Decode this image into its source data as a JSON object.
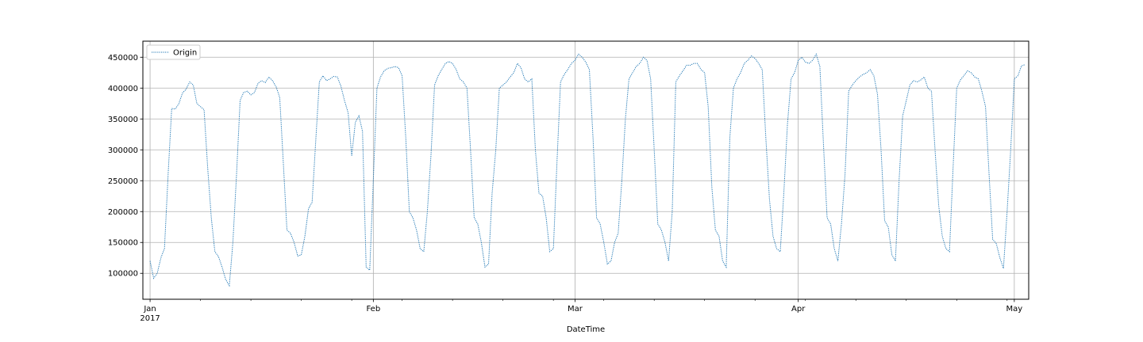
{
  "chart_data": {
    "type": "line",
    "title": "",
    "xlabel": "DateTime",
    "ylabel": "",
    "x_range": [
      "2016-12-31",
      "2017-05-03"
    ],
    "ylim": [
      58000,
      476000
    ],
    "grid": true,
    "legend": {
      "position": "top-left",
      "entries": [
        "Origin"
      ]
    },
    "x_ticks": [
      {
        "date": "2017-01-01",
        "label": "Jan",
        "sublabel": "2017"
      },
      {
        "date": "2017-02-01",
        "label": "Feb",
        "sublabel": ""
      },
      {
        "date": "2017-03-01",
        "label": "Mar",
        "sublabel": ""
      },
      {
        "date": "2017-04-01",
        "label": "Apr",
        "sublabel": ""
      },
      {
        "date": "2017-05-01",
        "label": "May",
        "sublabel": ""
      }
    ],
    "y_ticks": [
      100000,
      150000,
      200000,
      250000,
      300000,
      350000,
      400000,
      450000
    ],
    "y_tick_labels": [
      "100000",
      "150000",
      "200000",
      "250000",
      "300000",
      "350000",
      "400000",
      "450000"
    ],
    "series": [
      {
        "name": "Origin",
        "color": "#1f77b4",
        "line_style": "dotted",
        "points": [
          [
            "2017-01-01",
            120000
          ],
          [
            "2017-01-01T12",
            92000
          ],
          [
            "2017-01-02",
            100000
          ],
          [
            "2017-01-02T12",
            125000
          ],
          [
            "2017-01-03",
            140000
          ],
          [
            "2017-01-03T12",
            260000
          ],
          [
            "2017-01-04",
            367000
          ],
          [
            "2017-01-04T12",
            366000
          ],
          [
            "2017-01-05",
            375000
          ],
          [
            "2017-01-05T12",
            392000
          ],
          [
            "2017-01-06",
            398000
          ],
          [
            "2017-01-06T12",
            410000
          ],
          [
            "2017-01-07",
            405000
          ],
          [
            "2017-01-07T12",
            375000
          ],
          [
            "2017-01-08",
            370000
          ],
          [
            "2017-01-08T12",
            365000
          ],
          [
            "2017-01-09",
            270000
          ],
          [
            "2017-01-09T12",
            190000
          ],
          [
            "2017-01-10",
            135000
          ],
          [
            "2017-01-10T12",
            127000
          ],
          [
            "2017-01-11",
            110000
          ],
          [
            "2017-01-11T12",
            90000
          ],
          [
            "2017-01-12",
            80000
          ],
          [
            "2017-01-12T12",
            150000
          ],
          [
            "2017-01-13",
            260000
          ],
          [
            "2017-01-13T12",
            380000
          ],
          [
            "2017-01-14",
            393000
          ],
          [
            "2017-01-14T12",
            395000
          ],
          [
            "2017-01-15",
            389000
          ],
          [
            "2017-01-15T12",
            393000
          ],
          [
            "2017-01-16",
            408000
          ],
          [
            "2017-01-16T12",
            412000
          ],
          [
            "2017-01-17",
            409000
          ],
          [
            "2017-01-17T12",
            418000
          ],
          [
            "2017-01-18",
            412000
          ],
          [
            "2017-01-18T12",
            402000
          ],
          [
            "2017-01-19",
            385000
          ],
          [
            "2017-01-19T12",
            280000
          ],
          [
            "2017-01-20",
            170000
          ],
          [
            "2017-01-20T12",
            165000
          ],
          [
            "2017-01-21",
            150000
          ],
          [
            "2017-01-21T12",
            128000
          ],
          [
            "2017-01-22",
            130000
          ],
          [
            "2017-01-22T12",
            160000
          ],
          [
            "2017-01-23",
            205000
          ],
          [
            "2017-01-23T12",
            215000
          ],
          [
            "2017-01-24",
            315000
          ],
          [
            "2017-01-24T12",
            410000
          ],
          [
            "2017-01-25",
            420000
          ],
          [
            "2017-01-25T12",
            412000
          ],
          [
            "2017-01-26",
            415000
          ],
          [
            "2017-01-26T12",
            419000
          ],
          [
            "2017-01-27",
            418000
          ],
          [
            "2017-01-27T12",
            403000
          ],
          [
            "2017-01-28",
            380000
          ],
          [
            "2017-01-28T12",
            360000
          ],
          [
            "2017-01-29",
            290000
          ],
          [
            "2017-01-29T12",
            345000
          ],
          [
            "2017-01-30",
            355000
          ],
          [
            "2017-01-30T12",
            330000
          ],
          [
            "2017-01-31",
            110000
          ],
          [
            "2017-01-31T12",
            105000
          ],
          [
            "2017-02-01",
            250000
          ],
          [
            "2017-02-01T12",
            400000
          ],
          [
            "2017-02-02",
            418000
          ],
          [
            "2017-02-02T12",
            428000
          ],
          [
            "2017-02-03",
            432000
          ],
          [
            "2017-02-03T12",
            433000
          ],
          [
            "2017-02-04",
            435000
          ],
          [
            "2017-02-04T12",
            433000
          ],
          [
            "2017-02-05",
            420000
          ],
          [
            "2017-02-05T12",
            320000
          ],
          [
            "2017-02-06",
            200000
          ],
          [
            "2017-02-06T12",
            190000
          ],
          [
            "2017-02-07",
            170000
          ],
          [
            "2017-02-07T12",
            140000
          ],
          [
            "2017-02-08",
            135000
          ],
          [
            "2017-02-08T12",
            200000
          ],
          [
            "2017-02-09",
            290000
          ],
          [
            "2017-02-09T12",
            405000
          ],
          [
            "2017-02-10",
            420000
          ],
          [
            "2017-02-10T12",
            430000
          ],
          [
            "2017-02-11",
            440000
          ],
          [
            "2017-02-11T12",
            443000
          ],
          [
            "2017-02-12",
            440000
          ],
          [
            "2017-02-12T12",
            430000
          ],
          [
            "2017-02-13",
            415000
          ],
          [
            "2017-02-13T12",
            410000
          ],
          [
            "2017-02-14",
            400000
          ],
          [
            "2017-02-14T12",
            300000
          ],
          [
            "2017-02-15",
            190000
          ],
          [
            "2017-02-15T12",
            180000
          ],
          [
            "2017-02-16",
            150000
          ],
          [
            "2017-02-16T12",
            110000
          ],
          [
            "2017-02-17",
            115000
          ],
          [
            "2017-02-17T12",
            230000
          ],
          [
            "2017-02-18",
            300000
          ],
          [
            "2017-02-18T12",
            400000
          ],
          [
            "2017-02-19",
            405000
          ],
          [
            "2017-02-19T12",
            410000
          ],
          [
            "2017-02-20",
            418000
          ],
          [
            "2017-02-20T12",
            425000
          ],
          [
            "2017-02-21",
            440000
          ],
          [
            "2017-02-21T12",
            433000
          ],
          [
            "2017-02-22",
            415000
          ],
          [
            "2017-02-22T12",
            410000
          ],
          [
            "2017-02-23",
            415000
          ],
          [
            "2017-02-23T12",
            300000
          ],
          [
            "2017-02-24",
            230000
          ],
          [
            "2017-02-24T12",
            225000
          ],
          [
            "2017-02-25",
            190000
          ],
          [
            "2017-02-25T12",
            135000
          ],
          [
            "2017-02-26",
            140000
          ],
          [
            "2017-02-26T12",
            280000
          ],
          [
            "2017-02-27",
            410000
          ],
          [
            "2017-02-27T12",
            422000
          ],
          [
            "2017-02-28",
            430000
          ],
          [
            "2017-02-28T12",
            440000
          ],
          [
            "2017-03-01",
            445000
          ],
          [
            "2017-03-01T12",
            455000
          ],
          [
            "2017-03-02",
            450000
          ],
          [
            "2017-03-02T12",
            442000
          ],
          [
            "2017-03-03",
            430000
          ],
          [
            "2017-03-03T12",
            320000
          ],
          [
            "2017-03-04",
            190000
          ],
          [
            "2017-03-04T12",
            180000
          ],
          [
            "2017-03-05",
            150000
          ],
          [
            "2017-03-05T12",
            115000
          ],
          [
            "2017-03-06",
            120000
          ],
          [
            "2017-03-06T12",
            150000
          ],
          [
            "2017-03-07",
            165000
          ],
          [
            "2017-03-07T12",
            250000
          ],
          [
            "2017-03-08",
            350000
          ],
          [
            "2017-03-08T12",
            415000
          ],
          [
            "2017-03-09",
            425000
          ],
          [
            "2017-03-09T12",
            435000
          ],
          [
            "2017-03-10",
            440000
          ],
          [
            "2017-03-10T12",
            450000
          ],
          [
            "2017-03-11",
            445000
          ],
          [
            "2017-03-11T12",
            415000
          ],
          [
            "2017-03-12",
            300000
          ],
          [
            "2017-03-12T12",
            180000
          ],
          [
            "2017-03-13",
            170000
          ],
          [
            "2017-03-13T12",
            150000
          ],
          [
            "2017-03-14",
            120000
          ],
          [
            "2017-03-14T12",
            200000
          ],
          [
            "2017-03-15",
            410000
          ],
          [
            "2017-03-15T12",
            420000
          ],
          [
            "2017-03-16",
            428000
          ],
          [
            "2017-03-16T12",
            437000
          ],
          [
            "2017-03-17",
            437000
          ],
          [
            "2017-03-17T12",
            440000
          ],
          [
            "2017-03-18",
            440000
          ],
          [
            "2017-03-18T12",
            430000
          ],
          [
            "2017-03-19",
            425000
          ],
          [
            "2017-03-19T12",
            370000
          ],
          [
            "2017-03-20",
            240000
          ],
          [
            "2017-03-20T12",
            170000
          ],
          [
            "2017-03-21",
            160000
          ],
          [
            "2017-03-21T12",
            120000
          ],
          [
            "2017-03-22",
            110000
          ],
          [
            "2017-03-22T12",
            320000
          ],
          [
            "2017-03-23",
            400000
          ],
          [
            "2017-03-23T12",
            415000
          ],
          [
            "2017-03-24",
            425000
          ],
          [
            "2017-03-24T12",
            440000
          ],
          [
            "2017-03-25",
            445000
          ],
          [
            "2017-03-25T12",
            452000
          ],
          [
            "2017-03-26",
            448000
          ],
          [
            "2017-03-26T12",
            440000
          ],
          [
            "2017-03-27",
            430000
          ],
          [
            "2017-03-27T12",
            320000
          ],
          [
            "2017-03-28",
            220000
          ],
          [
            "2017-03-28T12",
            160000
          ],
          [
            "2017-03-29",
            140000
          ],
          [
            "2017-03-29T12",
            135000
          ],
          [
            "2017-03-30",
            230000
          ],
          [
            "2017-03-30T12",
            340000
          ],
          [
            "2017-03-31",
            415000
          ],
          [
            "2017-03-31T12",
            425000
          ],
          [
            "2017-04-01",
            445000
          ],
          [
            "2017-04-01T12",
            450000
          ],
          [
            "2017-04-02",
            442000
          ],
          [
            "2017-04-02T12",
            440000
          ],
          [
            "2017-04-03",
            445000
          ],
          [
            "2017-04-03T12",
            455000
          ],
          [
            "2017-04-04",
            435000
          ],
          [
            "2017-04-04T12",
            310000
          ],
          [
            "2017-04-05",
            190000
          ],
          [
            "2017-04-05T12",
            180000
          ],
          [
            "2017-04-06",
            140000
          ],
          [
            "2017-04-06T12",
            120000
          ],
          [
            "2017-04-07",
            180000
          ],
          [
            "2017-04-07T12",
            260000
          ],
          [
            "2017-04-08",
            395000
          ],
          [
            "2017-04-08T12",
            405000
          ],
          [
            "2017-04-09",
            412000
          ],
          [
            "2017-04-09T12",
            418000
          ],
          [
            "2017-04-10",
            422000
          ],
          [
            "2017-04-10T12",
            425000
          ],
          [
            "2017-04-11",
            430000
          ],
          [
            "2017-04-11T12",
            420000
          ],
          [
            "2017-04-12",
            390000
          ],
          [
            "2017-04-12T12",
            300000
          ],
          [
            "2017-04-13",
            185000
          ],
          [
            "2017-04-13T12",
            175000
          ],
          [
            "2017-04-14",
            130000
          ],
          [
            "2017-04-14T12",
            120000
          ],
          [
            "2017-04-15",
            250000
          ],
          [
            "2017-04-15T12",
            355000
          ],
          [
            "2017-04-16",
            380000
          ],
          [
            "2017-04-16T12",
            405000
          ],
          [
            "2017-04-17",
            412000
          ],
          [
            "2017-04-17T12",
            410000
          ],
          [
            "2017-04-18",
            413000
          ],
          [
            "2017-04-18T12",
            418000
          ],
          [
            "2017-04-19",
            400000
          ],
          [
            "2017-04-19T12",
            395000
          ],
          [
            "2017-04-20",
            300000
          ],
          [
            "2017-04-20T12",
            210000
          ],
          [
            "2017-04-21",
            160000
          ],
          [
            "2017-04-21T12",
            140000
          ],
          [
            "2017-04-22",
            135000
          ],
          [
            "2017-04-22T12",
            270000
          ],
          [
            "2017-04-23",
            400000
          ],
          [
            "2017-04-23T12",
            413000
          ],
          [
            "2017-04-24",
            420000
          ],
          [
            "2017-04-24T12",
            428000
          ],
          [
            "2017-04-25",
            425000
          ],
          [
            "2017-04-25T12",
            418000
          ],
          [
            "2017-04-26",
            415000
          ],
          [
            "2017-04-26T12",
            395000
          ],
          [
            "2017-04-27",
            370000
          ],
          [
            "2017-04-27T12",
            260000
          ],
          [
            "2017-04-28",
            155000
          ],
          [
            "2017-04-28T12",
            148000
          ],
          [
            "2017-04-29",
            125000
          ],
          [
            "2017-04-29T12",
            108000
          ],
          [
            "2017-04-30",
            200000
          ],
          [
            "2017-04-30T12",
            300000
          ],
          [
            "2017-05-01",
            415000
          ],
          [
            "2017-05-01T12",
            420000
          ],
          [
            "2017-05-02",
            436000
          ],
          [
            "2017-05-02T12",
            438000
          ]
        ]
      }
    ]
  }
}
